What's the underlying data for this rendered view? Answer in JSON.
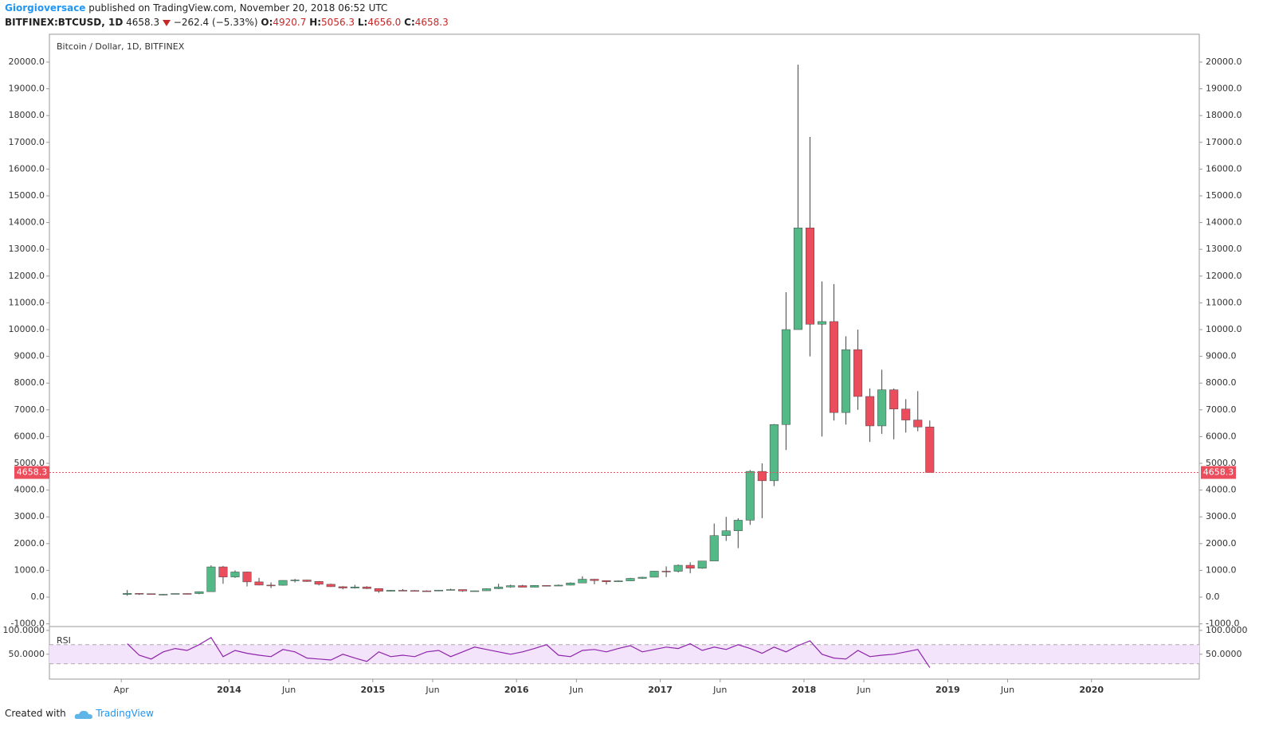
{
  "header": {
    "author": "Giorgioversace",
    "published": "published on TradingView.com, November 20, 2018 06:52 UTC",
    "symbol": "BITFINEX:BTCUSD, 1D",
    "price": "4658.3",
    "change": "−262.4 (−5.33%)",
    "open_label": "O:",
    "open": "4920.7",
    "high_label": "H:",
    "high": "5056.3",
    "low_label": "L:",
    "low": "4656.0",
    "close_label": "C:",
    "close": "4658.3"
  },
  "chart_data": [
    {
      "type": "candlestick",
      "title": "Bitcoin / Dollar, 1D, BITFINEX",
      "up_color": "#53b987",
      "down_color": "#eb4d5c",
      "x": [
        "2013-04",
        "2013-05",
        "2013-06",
        "2013-07",
        "2013-08",
        "2013-09",
        "2013-10",
        "2013-11",
        "2013-12",
        "2014-01",
        "2014-02",
        "2014-03",
        "2014-04",
        "2014-05",
        "2014-06",
        "2014-07",
        "2014-08",
        "2014-09",
        "2014-10",
        "2014-11",
        "2014-12",
        "2015-01",
        "2015-02",
        "2015-03",
        "2015-04",
        "2015-05",
        "2015-06",
        "2015-07",
        "2015-08",
        "2015-09",
        "2015-10",
        "2015-11",
        "2015-12",
        "2016-01",
        "2016-02",
        "2016-03",
        "2016-04",
        "2016-05",
        "2016-06",
        "2016-07",
        "2016-08",
        "2016-09",
        "2016-10",
        "2016-11",
        "2016-12",
        "2017-01",
        "2017-02",
        "2017-03",
        "2017-04",
        "2017-05",
        "2017-06",
        "2017-07",
        "2017-08",
        "2017-09",
        "2017-10",
        "2017-11",
        "2017-12",
        "2018-01",
        "2018-02",
        "2018-03",
        "2018-04",
        "2018-05",
        "2018-06",
        "2018-07",
        "2018-08",
        "2018-09",
        "2018-10",
        "2018-11"
      ],
      "open": [
        100,
        139,
        128,
        97,
        106,
        135,
        133,
        204,
        1130,
        750,
        940,
        570,
        450,
        445,
        625,
        640,
        585,
        480,
        390,
        340,
        378,
        320,
        220,
        255,
        245,
        235,
        230,
        262,
        283,
        230,
        237,
        315,
        377,
        430,
        370,
        437,
        416,
        448,
        530,
        670,
        620,
        573,
        608,
        700,
        745,
        970,
        965,
        1190,
        1080,
        1350,
        2300,
        2480,
        2875,
        4700,
        4350,
        6450,
        10000,
        13800,
        10200,
        10300,
        6900,
        9250,
        7500,
        6400,
        7750,
        7030,
        6620,
        6360
      ],
      "high": [
        266,
        140,
        130,
        111,
        135,
        145,
        214,
        1190,
        1165,
        1000,
        950,
        720,
        550,
        630,
        680,
        650,
        600,
        500,
        410,
        460,
        410,
        320,
        270,
        300,
        260,
        250,
        270,
        315,
        285,
        245,
        330,
        500,
        465,
        460,
        445,
        440,
        470,
        550,
        780,
        680,
        620,
        620,
        720,
        760,
        980,
        1150,
        1220,
        1300,
        1350,
        2750,
        3000,
        2950,
        4750,
        5000,
        6470,
        11400,
        19900,
        17200,
        11800,
        11700,
        9750,
        10000,
        7800,
        8500,
        7800,
        7400,
        7700,
        6600
      ],
      "low": [
        50,
        84,
        90,
        65,
        100,
        118,
        108,
        203,
        500,
        720,
        400,
        440,
        340,
        430,
        550,
        570,
        440,
        380,
        290,
        320,
        300,
        160,
        210,
        240,
        210,
        225,
        220,
        255,
        200,
        225,
        235,
        300,
        350,
        360,
        365,
        405,
        415,
        440,
        525,
        480,
        470,
        570,
        605,
        680,
        745,
        750,
        920,
        890,
        1060,
        1350,
        2100,
        1830,
        2700,
        2950,
        4150,
        5500,
        10000,
        9000,
        6000,
        6600,
        6450,
        7000,
        5800,
        6100,
        5900,
        6150,
        6200,
        4656
      ],
      "close": [
        139,
        128,
        97,
        106,
        135,
        133,
        204,
        1130,
        750,
        940,
        570,
        450,
        445,
        625,
        640,
        585,
        480,
        390,
        340,
        378,
        320,
        220,
        255,
        245,
        235,
        230,
        262,
        283,
        230,
        237,
        315,
        377,
        430,
        370,
        437,
        416,
        448,
        530,
        670,
        620,
        573,
        608,
        700,
        745,
        970,
        965,
        1190,
        1080,
        1350,
        2300,
        2480,
        2875,
        4700,
        4350,
        6450,
        10000,
        13800,
        10200,
        10300,
        6900,
        9250,
        7500,
        6400,
        7750,
        7030,
        6620,
        6360,
        4658.3
      ],
      "last_price": 4658.3,
      "xlim": [
        "2012-10",
        "2020-10"
      ],
      "xticks": [
        {
          "value": "2013-04",
          "label": "Apr"
        },
        {
          "value": "2014-01",
          "label": "2014"
        },
        {
          "value": "2014-06",
          "label": "Jun"
        },
        {
          "value": "2015-01",
          "label": "2015"
        },
        {
          "value": "2015-06",
          "label": "Jun"
        },
        {
          "value": "2016-01",
          "label": "2016"
        },
        {
          "value": "2016-06",
          "label": "Jun"
        },
        {
          "value": "2017-01",
          "label": "2017"
        },
        {
          "value": "2017-06",
          "label": "Jun"
        },
        {
          "value": "2018-01",
          "label": "2018"
        },
        {
          "value": "2018-06",
          "label": "Jun"
        },
        {
          "value": "2019-01",
          "label": "2019"
        },
        {
          "value": "2019-06",
          "label": "Jun"
        },
        {
          "value": "2020-01",
          "label": "2020"
        }
      ],
      "ylim": [
        -1100,
        21040
      ],
      "yticks": [
        {
          "value": -1000,
          "label": "-1000.0"
        },
        {
          "value": 0,
          "label": "0.0"
        },
        {
          "value": 1000,
          "label": "1000.0"
        },
        {
          "value": 2000,
          "label": "2000.0"
        },
        {
          "value": 3000,
          "label": "3000.0"
        },
        {
          "value": 4000,
          "label": "4000.0"
        },
        {
          "value": 5000,
          "label": "5000.0"
        },
        {
          "value": 6000,
          "label": "6000.0"
        },
        {
          "value": 7000,
          "label": "7000.0"
        },
        {
          "value": 8000,
          "label": "8000.0"
        },
        {
          "value": 9000,
          "label": "9000.0"
        },
        {
          "value": 10000,
          "label": "10000.0"
        },
        {
          "value": 11000,
          "label": "11000.0"
        },
        {
          "value": 12000,
          "label": "12000.0"
        },
        {
          "value": 13000,
          "label": "13000.0"
        },
        {
          "value": 14000,
          "label": "14000.0"
        },
        {
          "value": 15000,
          "label": "15000.0"
        },
        {
          "value": 16000,
          "label": "16000.0"
        },
        {
          "value": 17000,
          "label": "17000.0"
        },
        {
          "value": 18000,
          "label": "18000.0"
        },
        {
          "value": 19000,
          "label": "19000.0"
        },
        {
          "value": 20000,
          "label": "20000.0"
        }
      ]
    },
    {
      "type": "line",
      "name": "RSI",
      "color": "#8e24aa",
      "band": [
        30,
        70
      ],
      "band_color": "#f3e3fb",
      "x": [
        "2013-04",
        "2013-05",
        "2013-06",
        "2013-07",
        "2013-08",
        "2013-09",
        "2013-10",
        "2013-11",
        "2013-12",
        "2014-01",
        "2014-02",
        "2014-03",
        "2014-04",
        "2014-05",
        "2014-06",
        "2014-07",
        "2014-08",
        "2014-09",
        "2014-10",
        "2014-11",
        "2014-12",
        "2015-01",
        "2015-02",
        "2015-03",
        "2015-04",
        "2015-05",
        "2015-06",
        "2015-07",
        "2015-08",
        "2015-09",
        "2015-10",
        "2015-11",
        "2015-12",
        "2016-01",
        "2016-02",
        "2016-03",
        "2016-04",
        "2016-05",
        "2016-06",
        "2016-07",
        "2016-08",
        "2016-09",
        "2016-10",
        "2016-11",
        "2016-12",
        "2017-01",
        "2017-02",
        "2017-03",
        "2017-04",
        "2017-05",
        "2017-06",
        "2017-07",
        "2017-08",
        "2017-09",
        "2017-10",
        "2017-11",
        "2017-12",
        "2018-01",
        "2018-02",
        "2018-03",
        "2018-04",
        "2018-05",
        "2018-06",
        "2018-07",
        "2018-08",
        "2018-09",
        "2018-10",
        "2018-11"
      ],
      "values": [
        72,
        48,
        40,
        55,
        62,
        58,
        70,
        85,
        45,
        58,
        52,
        48,
        45,
        60,
        55,
        42,
        40,
        38,
        50,
        42,
        35,
        55,
        45,
        48,
        45,
        55,
        58,
        45,
        55,
        65,
        60,
        55,
        50,
        55,
        62,
        70,
        48,
        45,
        58,
        60,
        55,
        62,
        68,
        55,
        60,
        65,
        62,
        72,
        58,
        65,
        60,
        70,
        62,
        52,
        65,
        55,
        68,
        78,
        50,
        42,
        40,
        58,
        45,
        48,
        50,
        55,
        60,
        22
      ],
      "ylim": [
        -2,
        108
      ],
      "yticks": [
        {
          "value": 100,
          "label": "100.0000"
        },
        {
          "value": 50,
          "label": "50.0000"
        }
      ]
    }
  ],
  "footer": {
    "created": "Created with",
    "brand": "TradingView"
  }
}
